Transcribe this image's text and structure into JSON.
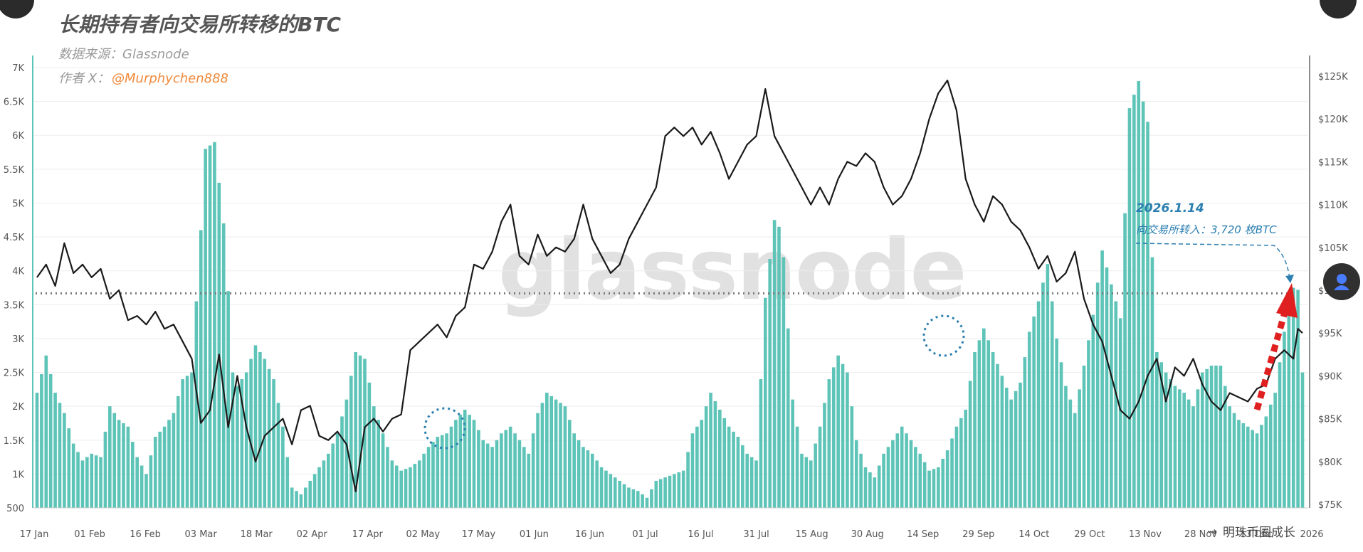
{
  "header": {
    "title": "长期持有者向交易所转移的BTC",
    "source": "数据来源：Glassnode",
    "author_prefix": "作者 X：",
    "author_handle": "@Murphychen888"
  },
  "watermark": "glassnode",
  "corner_badge": "明珠币圈成长",
  "annotation": {
    "date": "2026.1.14",
    "text": "向交易所转入：3,720 枚BTC"
  },
  "chart_data": {
    "type": "bar",
    "title": "长期持有者向交易所转移的BTC",
    "x_ticks": [
      "17 Jan",
      "01 Feb",
      "16 Feb",
      "03 Mar",
      "18 Mar",
      "02 Apr",
      "17 Apr",
      "02 May",
      "17 May",
      "01 Jun",
      "16 Jun",
      "01 Jul",
      "16 Jul",
      "31 Jul",
      "15 Aug",
      "30 Aug",
      "14 Sep",
      "29 Sep",
      "14 Oct",
      "29 Oct",
      "13 Nov",
      "28 Nov",
      "13 Dec",
      "2026"
    ],
    "y_left_ticks": [
      "500",
      "1K",
      "1.5K",
      "2K",
      "2.5K",
      "3K",
      "3.5K",
      "4K",
      "4.5K",
      "5K",
      "5.5K",
      "6K",
      "6.5K",
      "7K"
    ],
    "y_right_ticks": [
      "$75K",
      "$80K",
      "$85K",
      "$90K",
      "$95K",
      "$100K",
      "$105K",
      "$110K",
      "$115K",
      "$120K",
      "$125K"
    ],
    "ylim_left": [
      500,
      7000
    ],
    "ylim_right": [
      75000,
      125000
    ],
    "reference_line": 3720,
    "colors": {
      "bars": "#5ec4b8",
      "price": "#1a1a1a",
      "reference": "#777777",
      "arrow": "#e02020",
      "annotation": "#2c7fb0",
      "highlight": "#2c7fb0"
    },
    "series": [
      {
        "type": "bar",
        "anchors": [
          [
            0,
            2200
          ],
          [
            2,
            2750
          ],
          [
            4,
            2200
          ],
          [
            6,
            1900
          ],
          [
            8,
            1450
          ],
          [
            10,
            1200
          ],
          [
            12,
            1300
          ],
          [
            14,
            1250
          ],
          [
            16,
            2000
          ],
          [
            18,
            1800
          ],
          [
            20,
            1700
          ],
          [
            22,
            1250
          ],
          [
            24,
            1000
          ],
          [
            26,
            1550
          ],
          [
            28,
            1700
          ],
          [
            30,
            1900
          ],
          [
            32,
            2400
          ],
          [
            34,
            2500
          ],
          [
            36,
            4600
          ],
          [
            37,
            5800
          ],
          [
            39,
            5900
          ],
          [
            41,
            4700
          ],
          [
            42,
            3700
          ],
          [
            43,
            2500
          ],
          [
            44,
            2300
          ],
          [
            46,
            2500
          ],
          [
            48,
            2900
          ],
          [
            50,
            2700
          ],
          [
            52,
            2400
          ],
          [
            54,
            1700
          ],
          [
            56,
            800
          ],
          [
            58,
            700
          ],
          [
            60,
            900
          ],
          [
            62,
            1100
          ],
          [
            64,
            1300
          ],
          [
            66,
            1600
          ],
          [
            68,
            2100
          ],
          [
            70,
            2800
          ],
          [
            72,
            2700
          ],
          [
            74,
            2000
          ],
          [
            76,
            1600
          ],
          [
            78,
            1200
          ],
          [
            80,
            1050
          ],
          [
            82,
            1100
          ],
          [
            84,
            1200
          ],
          [
            86,
            1400
          ],
          [
            88,
            1550
          ],
          [
            90,
            1600
          ],
          [
            92,
            1800
          ],
          [
            94,
            1950
          ],
          [
            96,
            1800
          ],
          [
            98,
            1500
          ],
          [
            100,
            1400
          ],
          [
            102,
            1600
          ],
          [
            104,
            1700
          ],
          [
            106,
            1500
          ],
          [
            108,
            1300
          ],
          [
            110,
            1900
          ],
          [
            112,
            2200
          ],
          [
            114,
            2100
          ],
          [
            116,
            2000
          ],
          [
            118,
            1600
          ],
          [
            120,
            1400
          ],
          [
            122,
            1300
          ],
          [
            124,
            1100
          ],
          [
            126,
            1000
          ],
          [
            128,
            900
          ],
          [
            130,
            800
          ],
          [
            132,
            750
          ],
          [
            134,
            650
          ],
          [
            136,
            900
          ],
          [
            138,
            950
          ],
          [
            140,
            1000
          ],
          [
            142,
            1050
          ],
          [
            144,
            1600
          ],
          [
            146,
            1800
          ],
          [
            148,
            2200
          ],
          [
            150,
            1950
          ],
          [
            152,
            1700
          ],
          [
            154,
            1550
          ],
          [
            156,
            1300
          ],
          [
            158,
            1200
          ],
          [
            160,
            3600
          ],
          [
            162,
            4750
          ],
          [
            163,
            4650
          ],
          [
            164,
            4200
          ],
          [
            166,
            2100
          ],
          [
            168,
            1300
          ],
          [
            170,
            1200
          ],
          [
            172,
            1700
          ],
          [
            174,
            2400
          ],
          [
            176,
            2750
          ],
          [
            178,
            2500
          ],
          [
            180,
            1500
          ],
          [
            182,
            1100
          ],
          [
            184,
            950
          ],
          [
            186,
            1300
          ],
          [
            188,
            1500
          ],
          [
            190,
            1700
          ],
          [
            192,
            1500
          ],
          [
            194,
            1300
          ],
          [
            196,
            1050
          ],
          [
            198,
            1100
          ],
          [
            200,
            1350
          ],
          [
            202,
            1700
          ],
          [
            204,
            1950
          ],
          [
            206,
            2800
          ],
          [
            208,
            3150
          ],
          [
            210,
            2800
          ],
          [
            212,
            2450
          ],
          [
            214,
            2100
          ],
          [
            216,
            2350
          ],
          [
            218,
            3100
          ],
          [
            220,
            3550
          ],
          [
            222,
            4100
          ],
          [
            224,
            3000
          ],
          [
            226,
            2300
          ],
          [
            228,
            1900
          ],
          [
            230,
            2600
          ],
          [
            232,
            3350
          ],
          [
            234,
            4300
          ],
          [
            236,
            3800
          ],
          [
            238,
            3300
          ],
          [
            240,
            6400
          ],
          [
            242,
            6800
          ],
          [
            244,
            6200
          ],
          [
            245,
            4200
          ],
          [
            246,
            2800
          ],
          [
            248,
            2500
          ],
          [
            250,
            2300
          ],
          [
            252,
            2200
          ],
          [
            254,
            2000
          ],
          [
            256,
            2500
          ],
          [
            258,
            2600
          ],
          [
            260,
            2600
          ],
          [
            262,
            2000
          ],
          [
            264,
            1800
          ],
          [
            266,
            1700
          ],
          [
            268,
            1600
          ],
          [
            270,
            1850
          ],
          [
            272,
            2200
          ],
          [
            274,
            3100
          ],
          [
            276,
            3750
          ],
          [
            277,
            3720
          ],
          [
            278,
            2500
          ]
        ]
      },
      {
        "type": "line",
        "name": "BTC price",
        "anchors": [
          [
            0,
            101500
          ],
          [
            2,
            103000
          ],
          [
            4,
            100500
          ],
          [
            6,
            105500
          ],
          [
            8,
            102000
          ],
          [
            10,
            103000
          ],
          [
            12,
            101500
          ],
          [
            14,
            102500
          ],
          [
            16,
            99000
          ],
          [
            18,
            100000
          ],
          [
            20,
            96500
          ],
          [
            22,
            97000
          ],
          [
            24,
            96000
          ],
          [
            26,
            97500
          ],
          [
            28,
            95500
          ],
          [
            30,
            96000
          ],
          [
            32,
            94000
          ],
          [
            34,
            92000
          ],
          [
            36,
            84500
          ],
          [
            38,
            86000
          ],
          [
            40,
            92500
          ],
          [
            42,
            84000
          ],
          [
            44,
            90000
          ],
          [
            46,
            84000
          ],
          [
            48,
            80000
          ],
          [
            50,
            83000
          ],
          [
            52,
            84000
          ],
          [
            54,
            85000
          ],
          [
            56,
            82000
          ],
          [
            58,
            86000
          ],
          [
            60,
            86500
          ],
          [
            62,
            83000
          ],
          [
            64,
            82500
          ],
          [
            66,
            83500
          ],
          [
            68,
            82000
          ],
          [
            70,
            76500
          ],
          [
            72,
            84000
          ],
          [
            74,
            85000
          ],
          [
            76,
            83500
          ],
          [
            78,
            85000
          ],
          [
            80,
            85500
          ],
          [
            82,
            93000
          ],
          [
            84,
            94000
          ],
          [
            86,
            95000
          ],
          [
            88,
            96000
          ],
          [
            90,
            94500
          ],
          [
            92,
            97000
          ],
          [
            94,
            98000
          ],
          [
            96,
            103000
          ],
          [
            98,
            102500
          ],
          [
            100,
            104500
          ],
          [
            102,
            108000
          ],
          [
            104,
            110000
          ],
          [
            106,
            104000
          ],
          [
            108,
            103000
          ],
          [
            110,
            106500
          ],
          [
            112,
            104000
          ],
          [
            114,
            105000
          ],
          [
            116,
            104500
          ],
          [
            118,
            106000
          ],
          [
            120,
            110000
          ],
          [
            122,
            106000
          ],
          [
            124,
            104000
          ],
          [
            126,
            102000
          ],
          [
            128,
            103000
          ],
          [
            130,
            106000
          ],
          [
            132,
            108000
          ],
          [
            134,
            110000
          ],
          [
            136,
            112000
          ],
          [
            138,
            118000
          ],
          [
            140,
            119000
          ],
          [
            142,
            118000
          ],
          [
            144,
            119000
          ],
          [
            146,
            117000
          ],
          [
            148,
            118500
          ],
          [
            150,
            116000
          ],
          [
            152,
            113000
          ],
          [
            154,
            115000
          ],
          [
            156,
            117000
          ],
          [
            158,
            118000
          ],
          [
            160,
            123500
          ],
          [
            162,
            118000
          ],
          [
            164,
            116000
          ],
          [
            166,
            114000
          ],
          [
            168,
            112000
          ],
          [
            170,
            110000
          ],
          [
            172,
            112000
          ],
          [
            174,
            110000
          ],
          [
            176,
            113000
          ],
          [
            178,
            115000
          ],
          [
            180,
            114500
          ],
          [
            182,
            116000
          ],
          [
            184,
            115000
          ],
          [
            186,
            112000
          ],
          [
            188,
            110000
          ],
          [
            190,
            111000
          ],
          [
            192,
            113000
          ],
          [
            194,
            116000
          ],
          [
            196,
            120000
          ],
          [
            198,
            123000
          ],
          [
            200,
            124500
          ],
          [
            202,
            121000
          ],
          [
            204,
            113000
          ],
          [
            206,
            110000
          ],
          [
            208,
            108000
          ],
          [
            210,
            111000
          ],
          [
            212,
            110000
          ],
          [
            214,
            108000
          ],
          [
            216,
            107000
          ],
          [
            218,
            105000
          ],
          [
            220,
            102500
          ],
          [
            222,
            104000
          ],
          [
            224,
            101000
          ],
          [
            226,
            102000
          ],
          [
            228,
            104500
          ],
          [
            230,
            99000
          ],
          [
            232,
            96000
          ],
          [
            234,
            94000
          ],
          [
            236,
            90000
          ],
          [
            238,
            86000
          ],
          [
            240,
            85000
          ],
          [
            242,
            87000
          ],
          [
            244,
            90000
          ],
          [
            246,
            92000
          ],
          [
            248,
            87000
          ],
          [
            250,
            91000
          ],
          [
            252,
            90000
          ],
          [
            254,
            92000
          ],
          [
            256,
            89000
          ],
          [
            258,
            87000
          ],
          [
            260,
            86000
          ],
          [
            262,
            88000
          ],
          [
            264,
            87500
          ],
          [
            266,
            87000
          ],
          [
            268,
            88500
          ],
          [
            270,
            89000
          ],
          [
            272,
            92000
          ],
          [
            274,
            93000
          ],
          [
            276,
            92000
          ],
          [
            277,
            95500
          ],
          [
            278,
            95000
          ]
        ]
      }
    ]
  }
}
